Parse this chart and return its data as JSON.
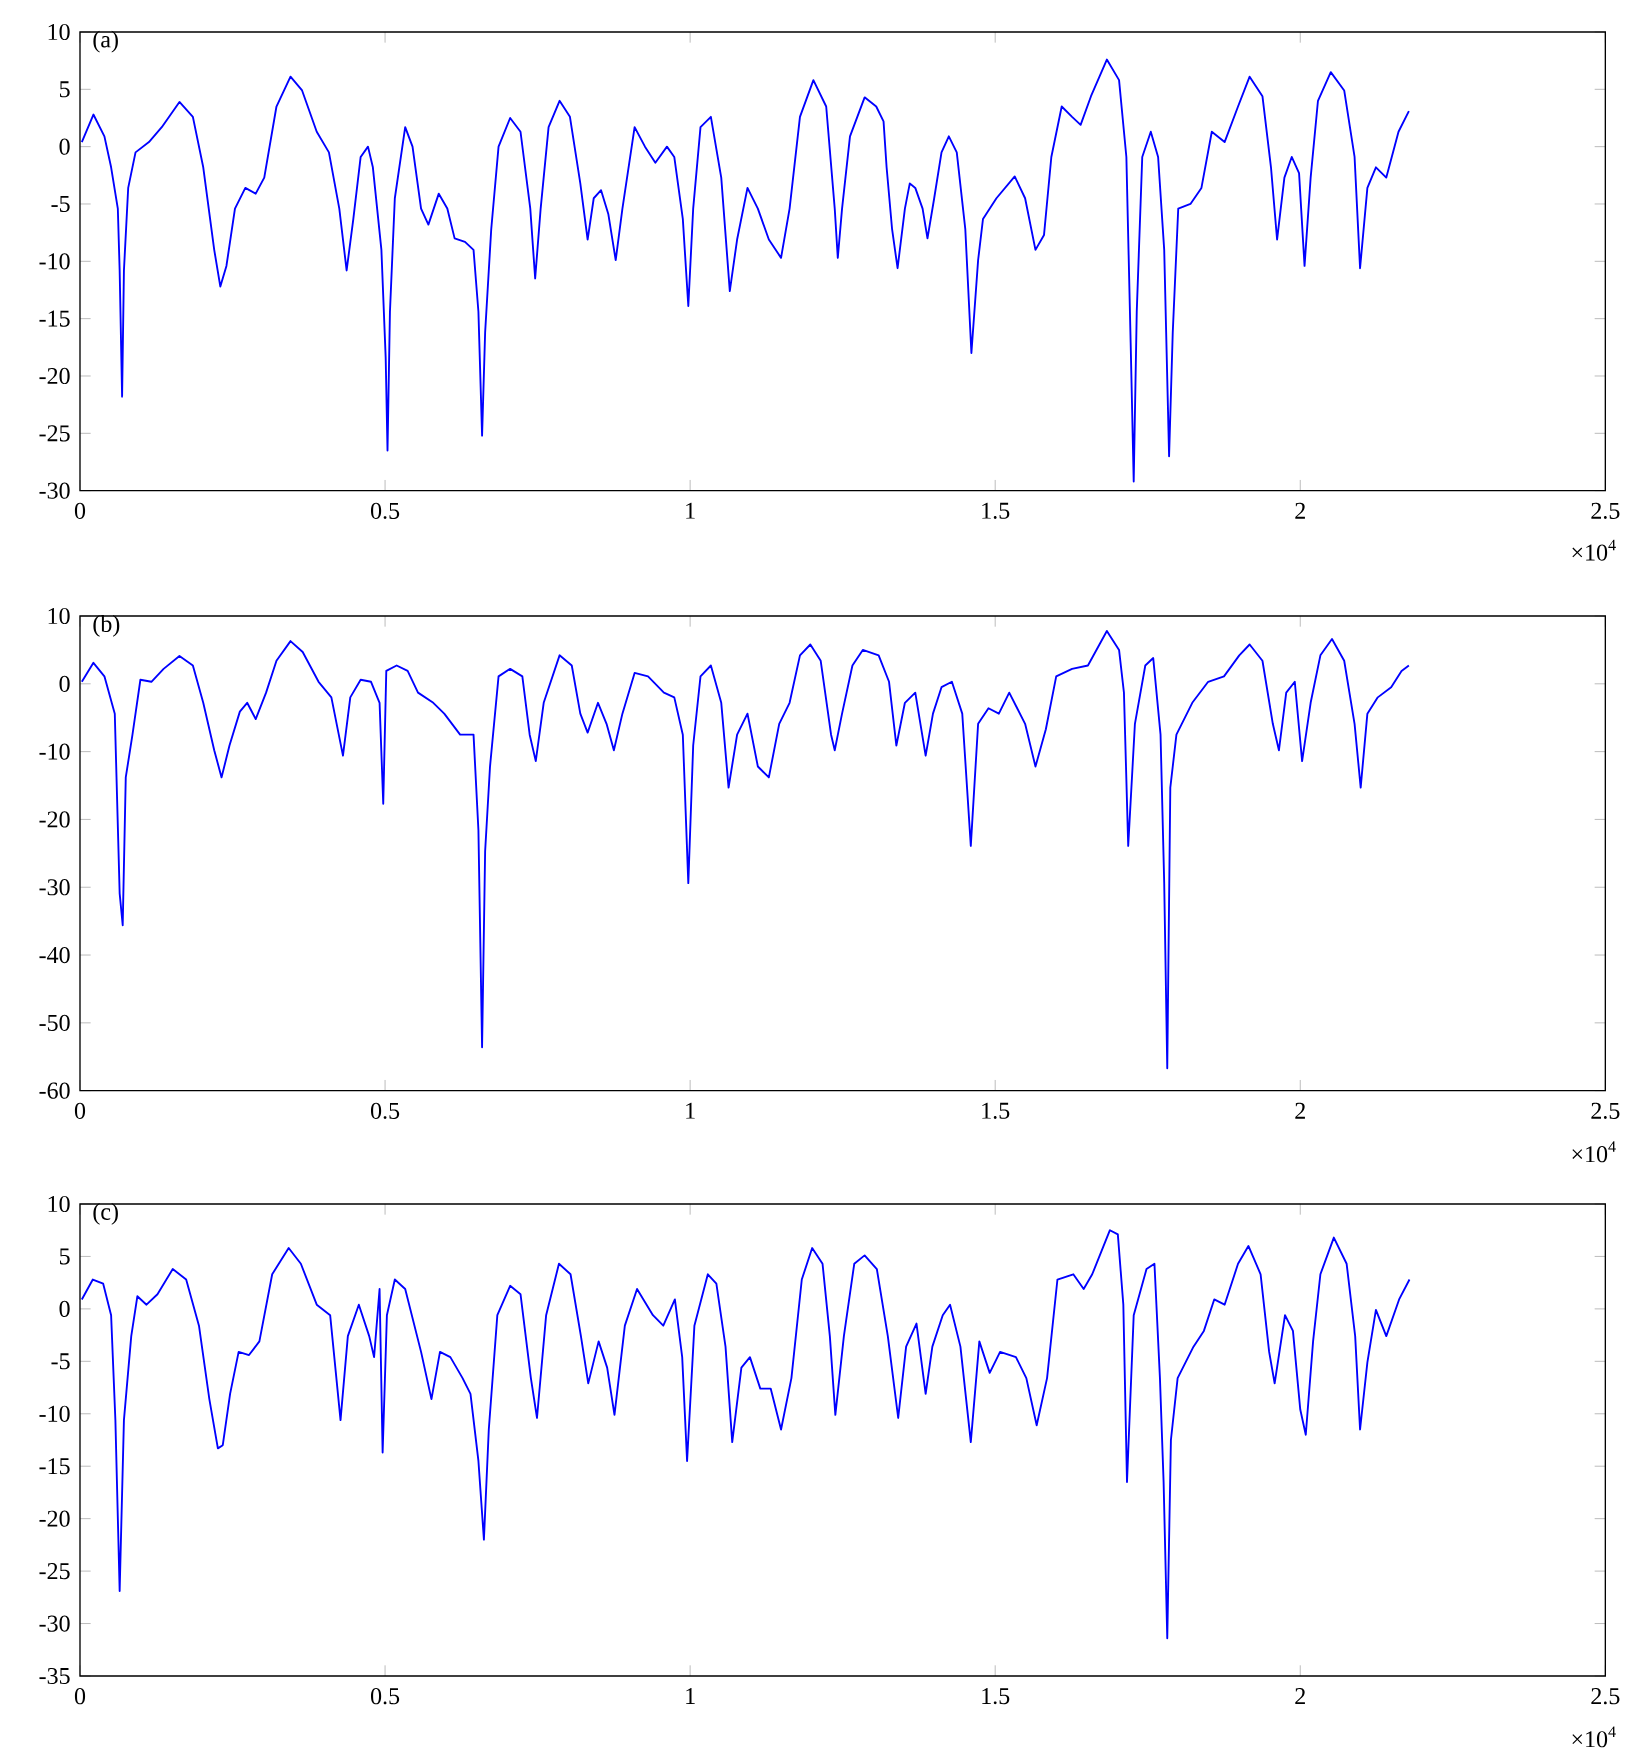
{
  "chart_data": [
    {
      "type": "line",
      "title": "(a)",
      "annotations": [
        "×10$^{4}$"
      ],
      "xlim": [
        0,
        2.5
      ],
      "ylim": [
        -30,
        10
      ],
      "xticks": [
        0,
        0.5,
        1,
        1.5,
        2,
        2.5
      ],
      "yticks": [
        -30,
        -25,
        -20,
        -15,
        -10,
        -5,
        0,
        5,
        10
      ],
      "marker": "none",
      "line_style": "solid",
      "x": [
        0.003,
        0.022,
        0.04,
        0.051,
        0.062,
        0.065,
        0.069,
        0.072,
        0.079,
        0.091,
        0.113,
        0.134,
        0.163,
        0.185,
        0.202,
        0.22,
        0.23,
        0.24,
        0.254,
        0.271,
        0.288,
        0.302,
        0.322,
        0.345,
        0.364,
        0.388,
        0.408,
        0.425,
        0.437,
        0.448,
        0.46,
        0.472,
        0.48,
        0.494,
        0.501,
        0.504,
        0.508,
        0.516,
        0.533,
        0.545,
        0.559,
        0.571,
        0.588,
        0.602,
        0.614,
        0.631,
        0.645,
        0.653,
        0.659,
        0.664,
        0.674,
        0.686,
        0.705,
        0.722,
        0.738,
        0.746,
        0.755,
        0.768,
        0.786,
        0.803,
        0.82,
        0.832,
        0.842,
        0.854,
        0.866,
        0.878,
        0.889,
        0.909,
        0.926,
        0.943,
        0.962,
        0.974,
        0.988,
        0.997,
        1.005,
        1.017,
        1.034,
        1.051,
        1.065,
        1.077,
        1.094,
        1.111,
        1.129,
        1.149,
        1.163,
        1.18,
        1.202,
        1.223,
        1.237,
        1.242,
        1.249,
        1.262,
        1.286,
        1.305,
        1.317,
        1.322,
        1.331,
        1.34,
        1.352,
        1.36,
        1.369,
        1.381,
        1.389,
        1.4,
        1.412,
        1.424,
        1.437,
        1.451,
        1.461,
        1.472,
        1.48,
        1.502,
        1.532,
        1.549,
        1.566,
        1.58,
        1.592,
        1.609,
        1.626,
        1.64,
        1.657,
        1.683,
        1.703,
        1.715,
        1.722,
        1.727,
        1.732,
        1.741,
        1.755,
        1.767,
        1.777,
        1.785,
        1.791,
        1.8,
        1.82,
        1.838,
        1.855,
        1.876,
        1.898,
        1.917,
        1.938,
        1.952,
        1.962,
        1.974,
        1.986,
        1.998,
        2.007,
        2.017,
        2.029,
        2.05,
        2.072,
        2.089,
        2.098,
        2.11,
        2.124,
        2.141,
        2.161,
        2.178
      ],
      "series": [
        {
          "color": "#0000ff",
          "values": [
            0.4,
            2.8,
            0.9,
            -1.8,
            -5.4,
            -10.8,
            -21.8,
            -10.8,
            -3.6,
            -0.5,
            0.4,
            1.7,
            3.9,
            2.6,
            -1.8,
            -9,
            -12.2,
            -10.4,
            -5.4,
            -3.6,
            -4.1,
            -2.7,
            3.5,
            6.1,
            4.9,
            1.3,
            -0.5,
            -5.4,
            -10.8,
            -6.3,
            -0.9,
            0,
            -1.8,
            -9,
            -18.4,
            -26.5,
            -14.4,
            -4.5,
            1.7,
            0,
            -5.4,
            -6.8,
            -4.1,
            -5.4,
            -8,
            -8.3,
            -9,
            -14.4,
            -25.2,
            -16.2,
            -7.2,
            0,
            2.5,
            1.3,
            -5.4,
            -11.5,
            -5.4,
            1.7,
            4,
            2.6,
            -3.2,
            -8.1,
            -4.5,
            -3.8,
            -5.9,
            -9.9,
            -5.4,
            1.7,
            0,
            -1.4,
            0,
            -0.9,
            -6.3,
            -13.9,
            -5.4,
            1.7,
            2.6,
            -2.7,
            -12.6,
            -8.1,
            -3.6,
            -5.4,
            -8.1,
            -9.7,
            -5.4,
            2.6,
            5.8,
            3.5,
            -5.4,
            -9.7,
            -5.4,
            0.9,
            4.3,
            3.5,
            2.2,
            -1.8,
            -7.2,
            -10.6,
            -5.4,
            -3.2,
            -3.6,
            -5.4,
            -8,
            -4.5,
            -0.5,
            0.9,
            -0.5,
            -7.2,
            -18,
            -9.9,
            -6.3,
            -4.5,
            -2.6,
            -4.5,
            -9,
            -7.7,
            -0.9,
            3.5,
            2.6,
            1.9,
            4.4,
            7.6,
            5.8,
            -0.9,
            -17.1,
            -29.2,
            -14.4,
            -0.9,
            1.3,
            -0.9,
            -9,
            -27,
            -16.2,
            -5.4,
            -5,
            -3.6,
            1.3,
            0.4,
            3.5,
            6.1,
            4.4,
            -1.8,
            -8.1,
            -2.7,
            -0.9,
            -2.3,
            -10.4,
            -2.7,
            4,
            6.5,
            4.9,
            -0.9,
            -10.6,
            -3.6,
            -1.8,
            -2.7,
            1.3,
            3.1
          ]
        }
      ]
    },
    {
      "type": "line",
      "title": "(b)",
      "annotations": [
        "×10$^{4}$"
      ],
      "xlim": [
        0,
        2.5
      ],
      "ylim": [
        -60,
        10
      ],
      "xticks": [
        0,
        0.5,
        1,
        1.5,
        2,
        2.5
      ],
      "yticks": [
        -60,
        -50,
        -40,
        -30,
        -20,
        -10,
        0,
        10
      ],
      "marker": "none",
      "line_style": "solid",
      "x": [
        0.003,
        0.022,
        0.04,
        0.057,
        0.065,
        0.07,
        0.075,
        0.086,
        0.099,
        0.117,
        0.137,
        0.163,
        0.185,
        0.202,
        0.22,
        0.232,
        0.245,
        0.262,
        0.274,
        0.288,
        0.305,
        0.322,
        0.345,
        0.365,
        0.391,
        0.412,
        0.431,
        0.443,
        0.46,
        0.477,
        0.491,
        0.497,
        0.502,
        0.519,
        0.537,
        0.554,
        0.579,
        0.597,
        0.623,
        0.645,
        0.653,
        0.659,
        0.664,
        0.672,
        0.686,
        0.705,
        0.725,
        0.737,
        0.747,
        0.76,
        0.786,
        0.806,
        0.82,
        0.832,
        0.849,
        0.863,
        0.875,
        0.889,
        0.909,
        0.931,
        0.957,
        0.974,
        0.988,
        0.997,
        1.005,
        1.017,
        1.034,
        1.051,
        1.063,
        1.077,
        1.094,
        1.111,
        1.129,
        1.146,
        1.163,
        1.18,
        1.197,
        1.214,
        1.231,
        1.237,
        1.249,
        1.266,
        1.283,
        1.309,
        1.326,
        1.338,
        1.352,
        1.369,
        1.386,
        1.398,
        1.412,
        1.429,
        1.446,
        1.46,
        1.472,
        1.489,
        1.506,
        1.523,
        1.549,
        1.566,
        1.583,
        1.6,
        1.626,
        1.652,
        1.683,
        1.703,
        1.711,
        1.718,
        1.729,
        1.746,
        1.759,
        1.771,
        1.777,
        1.782,
        1.787,
        1.797,
        1.823,
        1.849,
        1.875,
        1.9,
        1.917,
        1.938,
        1.955,
        1.965,
        1.977,
        1.991,
        2.003,
        2.017,
        2.033,
        2.052,
        2.072,
        2.089,
        2.099,
        2.11,
        2.127,
        2.149,
        2.166,
        2.178
      ],
      "series": [
        {
          "color": "#0000ff",
          "values": [
            0.3,
            3.1,
            1.1,
            -4.4,
            -30.9,
            -35.6,
            -13.8,
            -7.5,
            0.6,
            0.3,
            2.2,
            4.1,
            2.7,
            -2.8,
            -9.8,
            -13.8,
            -9.1,
            -4.1,
            -2.8,
            -5.2,
            -1.3,
            3.4,
            6.3,
            4.7,
            0.3,
            -2,
            -10.6,
            -2,
            0.6,
            0.3,
            -2.8,
            -17.7,
            1.9,
            2.7,
            1.9,
            -1.3,
            -2.8,
            -4.4,
            -7.5,
            -7.5,
            -21.6,
            -53.6,
            -24.7,
            -12.2,
            1.1,
            2.2,
            1.1,
            -7.5,
            -11.4,
            -2.8,
            4.2,
            2.7,
            -4.4,
            -7.2,
            -2.8,
            -5.9,
            -9.8,
            -4.4,
            1.6,
            1.1,
            -1.3,
            -2,
            -7.5,
            -29.4,
            -9.1,
            1.1,
            2.7,
            -2.8,
            -15.3,
            -7.5,
            -4.4,
            -12.2,
            -13.8,
            -5.9,
            -2.8,
            4.2,
            5.8,
            3.4,
            -7.5,
            -9.8,
            -4.4,
            2.7,
            5,
            4.2,
            0.3,
            -9.1,
            -2.8,
            -1.3,
            -10.6,
            -4.4,
            -0.5,
            0.3,
            -4.4,
            -23.9,
            -5.9,
            -3.6,
            -4.4,
            -1.3,
            -5.9,
            -12.2,
            -6.7,
            1.1,
            2.2,
            2.7,
            7.8,
            5,
            -1.3,
            -23.9,
            -5.9,
            2.7,
            3.8,
            -7.5,
            -29.4,
            -56.7,
            -15.3,
            -7.5,
            -2.8,
            0.3,
            1.1,
            4.2,
            5.8,
            3.4,
            -5.9,
            -9.8,
            -1.3,
            0.3,
            -11.4,
            -2.8,
            4.2,
            6.6,
            3.4,
            -5.9,
            -15.3,
            -4.4,
            -2,
            -0.5,
            1.9,
            2.7
          ]
        }
      ]
    },
    {
      "type": "line",
      "title": "(c)",
      "annotations": [
        "×10$^{4}$"
      ],
      "xlim": [
        0,
        2.5
      ],
      "ylim": [
        -35,
        10
      ],
      "xticks": [
        0,
        0.5,
        1,
        1.5,
        2,
        2.5
      ],
      "yticks": [
        -35,
        -30,
        -25,
        -20,
        -15,
        -10,
        -5,
        0,
        5,
        10
      ],
      "marker": "none",
      "line_style": "solid",
      "x": [
        0.003,
        0.021,
        0.038,
        0.051,
        0.058,
        0.065,
        0.072,
        0.084,
        0.094,
        0.109,
        0.127,
        0.152,
        0.174,
        0.195,
        0.212,
        0.226,
        0.234,
        0.246,
        0.26,
        0.277,
        0.294,
        0.315,
        0.342,
        0.362,
        0.388,
        0.41,
        0.427,
        0.439,
        0.457,
        0.474,
        0.482,
        0.491,
        0.496,
        0.503,
        0.516,
        0.533,
        0.559,
        0.576,
        0.59,
        0.607,
        0.627,
        0.64,
        0.653,
        0.662,
        0.67,
        0.684,
        0.705,
        0.722,
        0.739,
        0.749,
        0.764,
        0.785,
        0.804,
        0.821,
        0.833,
        0.85,
        0.864,
        0.876,
        0.893,
        0.913,
        0.939,
        0.956,
        0.975,
        0.987,
        0.995,
        1.007,
        1.029,
        1.043,
        1.058,
        1.069,
        1.084,
        1.098,
        1.115,
        1.132,
        1.149,
        1.166,
        1.183,
        1.2,
        1.217,
        1.229,
        1.238,
        1.252,
        1.269,
        1.286,
        1.306,
        1.324,
        1.341,
        1.354,
        1.371,
        1.386,
        1.397,
        1.414,
        1.426,
        1.443,
        1.46,
        1.474,
        1.491,
        1.508,
        1.534,
        1.551,
        1.568,
        1.585,
        1.602,
        1.628,
        1.645,
        1.659,
        1.688,
        1.701,
        1.71,
        1.716,
        1.727,
        1.748,
        1.761,
        1.77,
        1.776,
        1.782,
        1.788,
        1.799,
        1.825,
        1.842,
        1.859,
        1.876,
        1.898,
        1.915,
        1.935,
        1.949,
        1.958,
        1.975,
        1.988,
        2.0,
        2.009,
        2.021,
        2.033,
        2.055,
        2.076,
        2.09,
        2.098,
        2.11,
        2.124,
        2.141,
        2.162,
        2.179
      ],
      "series": [
        {
          "color": "#0000ff",
          "values": [
            0.9,
            2.8,
            2.4,
            -0.6,
            -10.6,
            -26.9,
            -10.6,
            -2.6,
            1.2,
            0.4,
            1.4,
            3.8,
            2.8,
            -1.6,
            -8.6,
            -13.3,
            -13,
            -8.1,
            -4.1,
            -4.4,
            -3.1,
            3.3,
            5.8,
            4.3,
            0.4,
            -0.6,
            -10.6,
            -2.6,
            0.4,
            -2.6,
            -4.6,
            1.9,
            -13.7,
            -0.6,
            2.8,
            1.9,
            -4.1,
            -8.6,
            -4.1,
            -4.6,
            -6.6,
            -8.1,
            -14.5,
            -22,
            -11.5,
            -0.6,
            2.2,
            1.4,
            -6.6,
            -10.4,
            -0.6,
            4.3,
            3.3,
            -2.6,
            -7.1,
            -3.1,
            -5.6,
            -10.1,
            -1.6,
            1.9,
            -0.6,
            -1.6,
            0.9,
            -4.6,
            -14.5,
            -1.6,
            3.3,
            2.4,
            -3.6,
            -12.7,
            -5.6,
            -4.6,
            -7.6,
            -7.6,
            -11.5,
            -6.6,
            2.8,
            5.8,
            4.3,
            -2.6,
            -10.1,
            -2.6,
            4.3,
            5.1,
            3.8,
            -2.6,
            -10.4,
            -3.6,
            -1.4,
            -8.1,
            -3.6,
            -0.6,
            0.4,
            -3.6,
            -12.7,
            -3.1,
            -6.1,
            -4.1,
            -4.6,
            -6.6,
            -11.1,
            -6.6,
            2.8,
            3.3,
            1.9,
            3.3,
            7.5,
            7.1,
            0.4,
            -16.5,
            -0.6,
            3.8,
            4.3,
            -6.6,
            -16.5,
            -31.4,
            -12.5,
            -6.6,
            -3.6,
            -2.1,
            0.9,
            0.4,
            4.3,
            6,
            3.3,
            -4.1,
            -7.1,
            -0.6,
            -2.1,
            -9.6,
            -12,
            -3.1,
            3.3,
            6.8,
            4.3,
            -2.6,
            -11.5,
            -5.1,
            -0.1,
            -2.6,
            0.9,
            2.8
          ]
        }
      ]
    }
  ]
}
